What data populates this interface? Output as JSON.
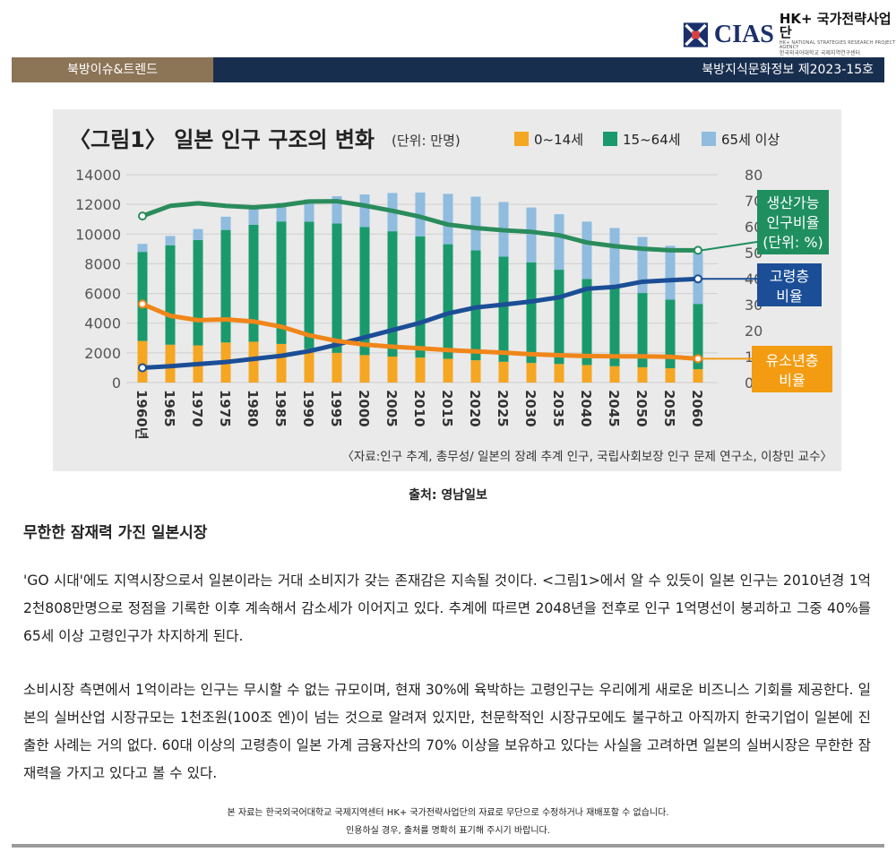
{
  "header": {
    "logo_text": "CIAS",
    "logo_title": "HK+ 국가전략사업단",
    "logo_sub": "HK+ NATIONAL STRATEGIES RESEARCH PROJECT AGENCY",
    "logo_sub2": "한국외국어대학교 국제지역연구센터",
    "section_tab": "북방이슈&트렌드",
    "issue_label": "북방지식문화정보 제2023-15호"
  },
  "figure": {
    "title": "〈그림1〉 일본 인구 구조의 변화",
    "unit": "(단위: 만명)",
    "credit": "〈자료:인구 추계, 총무성/ 일본의 장례 추계 인구, 국립사회보장 인구 문제 연구소, 이창민 교수〉"
  },
  "chart_data": {
    "type": "bar",
    "title": "〈그림1〉 일본 인구 구조의 변화",
    "subtitle": "(단위: 만명)",
    "categories": [
      "1960년",
      "1965",
      "1970",
      "1975",
      "1980",
      "1985",
      "1990",
      "1995",
      "2000",
      "2005",
      "2010",
      "2015",
      "2020",
      "2025",
      "2030",
      "2035",
      "2040",
      "2045",
      "2050",
      "2055",
      "2060"
    ],
    "stacked": true,
    "series": [
      {
        "name": "0~14세",
        "axis": "left",
        "color": "#f5a623",
        "values": [
          2800,
          2550,
          2500,
          2700,
          2750,
          2600,
          2250,
          2000,
          1850,
          1750,
          1680,
          1600,
          1500,
          1400,
          1320,
          1250,
          1180,
          1100,
          1030,
          960,
          900
        ]
      },
      {
        "name": "15~64세",
        "axis": "left",
        "color": "#1a9a6c",
        "values": [
          6000,
          6700,
          7100,
          7580,
          7880,
          8250,
          8590,
          8720,
          8620,
          8440,
          8170,
          7720,
          7400,
          7080,
          6780,
          6350,
          5800,
          5420,
          5000,
          4630,
          4400
        ]
      },
      {
        "name": "65세 이상",
        "axis": "left",
        "color": "#8fbcdf",
        "values": [
          540,
          620,
          740,
          890,
          1070,
          1250,
          1500,
          1830,
          2200,
          2580,
          2950,
          3390,
          3620,
          3680,
          3690,
          3740,
          3860,
          3890,
          3770,
          3620,
          3460
        ]
      }
    ],
    "lines": [
      {
        "label": "생산가능 인구비율 (단위: %)",
        "axis": "right",
        "color": "#2a8c5c",
        "values": [
          64.1,
          68.0,
          69.0,
          68.0,
          67.4,
          68.2,
          69.7,
          69.8,
          68.1,
          66.1,
          63.8,
          60.8,
          59.5,
          58.6,
          58.0,
          56.7,
          53.9,
          52.5,
          51.5,
          50.9,
          50.9
        ]
      },
      {
        "label": "고령층 비율",
        "axis": "right",
        "color": "#1b4e96",
        "values": [
          5.7,
          6.3,
          7.1,
          7.9,
          9.1,
          10.3,
          12.1,
          14.6,
          17.4,
          20.2,
          23.0,
          26.6,
          28.9,
          30.0,
          31.2,
          32.8,
          36.1,
          36.8,
          38.8,
          39.4,
          39.9
        ]
      },
      {
        "label": "유소년층 비율",
        "axis": "right",
        "color": "#f0861a",
        "values": [
          30.2,
          25.7,
          24.0,
          24.3,
          23.5,
          21.5,
          18.2,
          16.0,
          14.6,
          13.8,
          13.2,
          12.5,
          12.0,
          11.5,
          10.9,
          10.5,
          10.2,
          10.1,
          10.1,
          9.9,
          9.2
        ]
      }
    ],
    "ylim_left": [
      0,
      14000
    ],
    "yticks_left": [
      "0",
      "2000",
      "4000",
      "6000",
      "8000",
      "10000",
      "12000",
      "14000"
    ],
    "ylim_right": [
      0,
      80
    ],
    "yticks_right": [
      "0",
      "10",
      "20",
      "30",
      "40",
      "50",
      "60",
      "70",
      "80"
    ],
    "grid": true,
    "legend_position": "top-right",
    "line_labels": {
      "working": [
        "생산가능",
        "인구비율",
        "(단위: %)"
      ],
      "elderly": [
        "고령층",
        "비율"
      ],
      "youth": [
        "유소년층",
        "비율"
      ]
    },
    "colors": {
      "label_green": "#1f8f5f",
      "label_blue": "#1b4e96",
      "label_orange": "#f39c12"
    }
  },
  "source_caption": "출처: 영남일보",
  "article": {
    "heading": "무한한 잠재력 가진 일본시장",
    "paragraphs": [
      "'GO 시대'에도 지역시장으로서 일본이라는 거대 소비지가 갖는 존재감은 지속될 것이다. <그림1>에서 알 수 있듯이 일본 인구는 2010년경 1억2천808만명으로 정점을 기록한 이후 계속해서 감소세가 이어지고 있다. 추계에 따르면 2048년을 전후로 인구 1억명선이 붕괴하고 그중 40%를 65세 이상 고령인구가 차지하게 된다.",
      "소비시장 측면에서 1억이라는 인구는 무시할 수 없는 규모이며, 현재 30%에 육박하는 고령인구는 우리에게 새로운 비즈니스 기회를 제공한다. 일본의 실버산업 시장규모는 1천조원(100조 엔)이 넘는 것으로 알려져 있지만, 천문학적인 시장규모에도 불구하고 아직까지 한국기업이 일본에 진출한 사례는 거의 없다. 60대 이상의 고령층이 일본 가계 금융자산의 70% 이상을 보유하고 있다는 사실을 고려하면 일본의 실버시장은 무한한 잠재력을 가지고 있다고 볼 수 있다."
    ]
  },
  "footer": {
    "line1": "본 자료는 한국외국어대학교 국제지역센터 HK+ 국가전략사업단의 자료로 무단으로 수정하거나 재배포할 수 없습니다.",
    "line2": "인용하실 경우, 출처를 명확히 표기해 주시기 바랍니다."
  }
}
